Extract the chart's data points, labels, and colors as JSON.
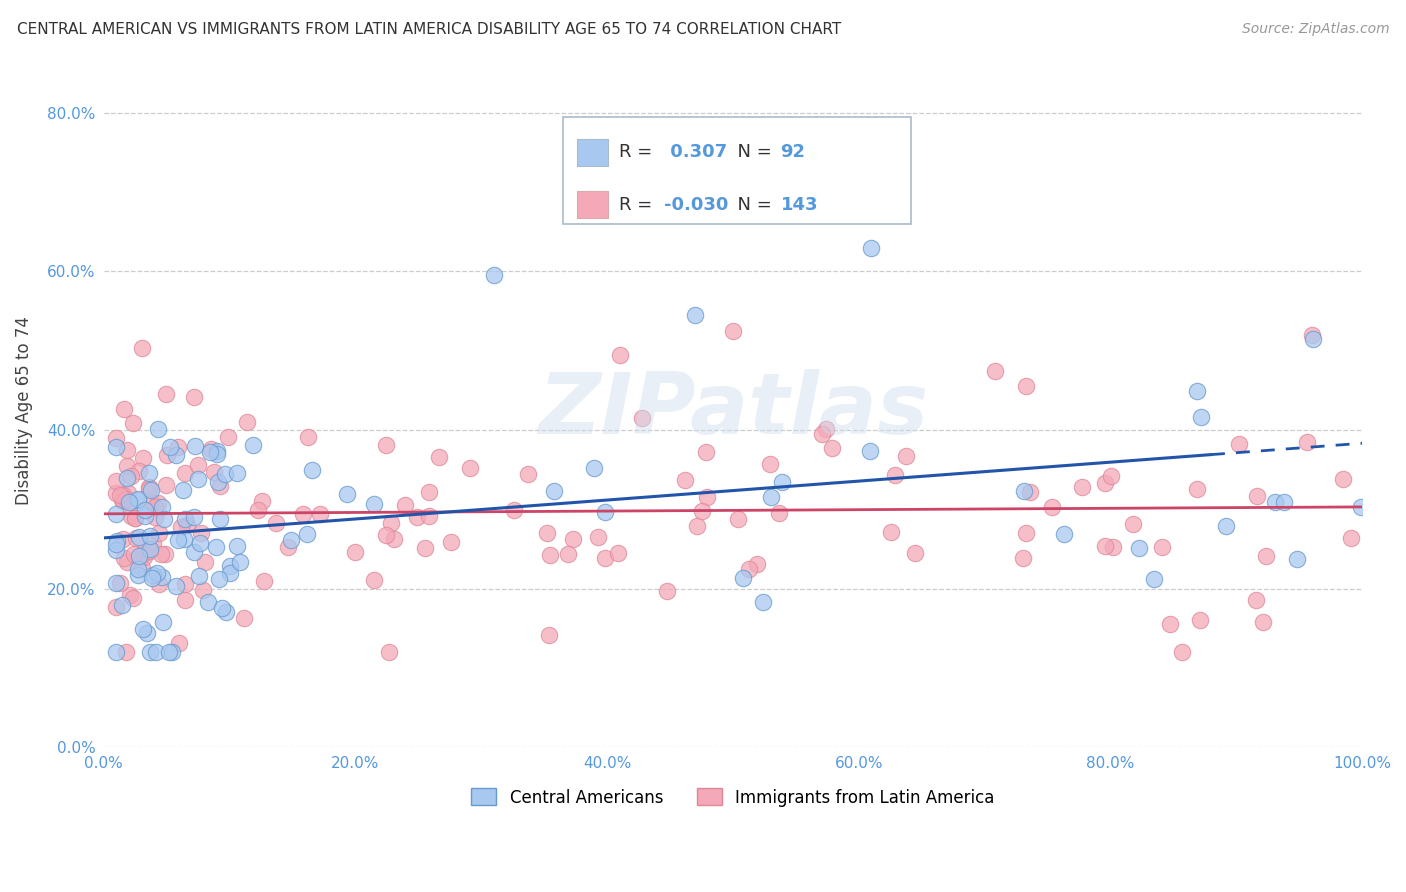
{
  "title": "CENTRAL AMERICAN VS IMMIGRANTS FROM LATIN AMERICA DISABILITY AGE 65 TO 74 CORRELATION CHART",
  "source": "Source: ZipAtlas.com",
  "ylabel": "Disability Age 65 to 74",
  "xlim": [
    0.0,
    1.0
  ],
  "ylim": [
    0.0,
    0.85
  ],
  "yticks": [
    0.0,
    0.2,
    0.4,
    0.6,
    0.8
  ],
  "xticks": [
    0.0,
    0.2,
    0.4,
    0.6,
    0.8,
    1.0
  ],
  "blue_R": 0.307,
  "blue_N": 92,
  "pink_R": -0.03,
  "pink_N": 143,
  "blue_fill": "#A8C8F0",
  "blue_edge": "#6699CC",
  "pink_fill": "#F4A8B8",
  "pink_edge": "#DD8899",
  "blue_line_color": "#2255AA",
  "pink_line_color": "#CC4466",
  "watermark": "ZIPatlas",
  "grid_color": "#CCCCCC",
  "background_color": "#FFFFFF",
  "title_fontsize": 11,
  "source_fontsize": 10,
  "legend_label_blue": "Central Americans",
  "legend_label_pink": "Immigrants from Latin America",
  "tick_color": "#5599DD",
  "legend_R_color": "#5599DD",
  "legend_text_color": "#333333"
}
